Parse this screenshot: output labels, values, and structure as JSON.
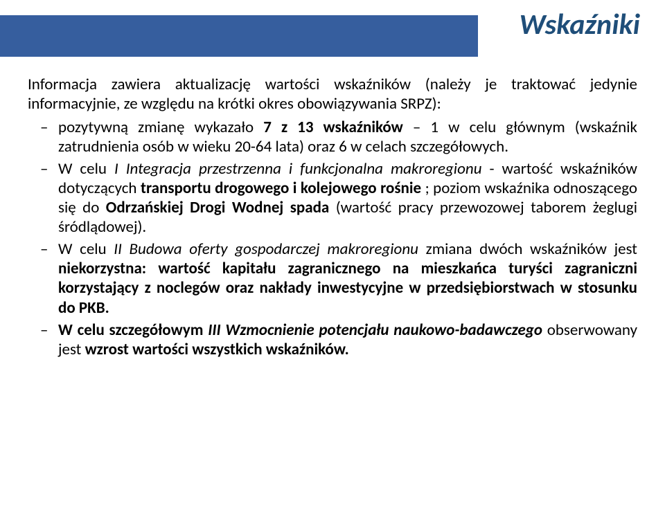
{
  "header": {
    "title": "Wskaźniki",
    "bar_color": "#365e9e",
    "title_color": "#1f4e79"
  },
  "lead": "Informacja zawiera aktualizację wartości wskaźników (należy je traktować jedynie informacyjnie, ze względu na krótki okres obowiązywania SRPZ):",
  "bullets": [
    {
      "pre": "pozytywną zmianę wykazało ",
      "bold1": "7 z 13 wskaźników ",
      "mid": "– 1 w celu głównym (wskaźnik zatrudnienia osób w wieku 20-64 lata) oraz 6 w celach szczegółowych.",
      "italic1": "",
      "bold2": "",
      "tail": ""
    },
    {
      "pre": "W celu ",
      "italic1": "I Integracja przestrzenna i funkcjonalna makroregionu ",
      "mid": "- wartość wskaźników dotyczących ",
      "bold1": "transportu drogowego i kolejowego rośnie ",
      "post": "; poziom wskaźnika odnoszącego się do ",
      "bold2": "Odrzańskiej Drogi Wodnej spada ",
      "tail": "(wartość pracy przewozowej taborem żeglugi śródlądowej)."
    },
    {
      "pre": "W celu ",
      "italic1": "II Budowa oferty gospodarczej makroregionu ",
      "mid": "zmiana dwóch wskaźników jest ",
      "bold1": "niekorzystna: wartość kapitału zagranicznego na mieszkańca turyści zagraniczni korzystający z noclegów oraz nakłady inwestycyjne w przedsiębiorstwach w stosunku do PKB.",
      "post": "",
      "bold2": "",
      "tail": ""
    },
    {
      "pre": "W celu szczegółowym ",
      "italic1": "III Wzmocnienie potencjału naukowo-badawczego ",
      "mid": "obserwowany jest ",
      "bold1": "wzrost wartości wszystkich wskaźników.",
      "post": "",
      "bold2": "",
      "tail": ""
    }
  ]
}
